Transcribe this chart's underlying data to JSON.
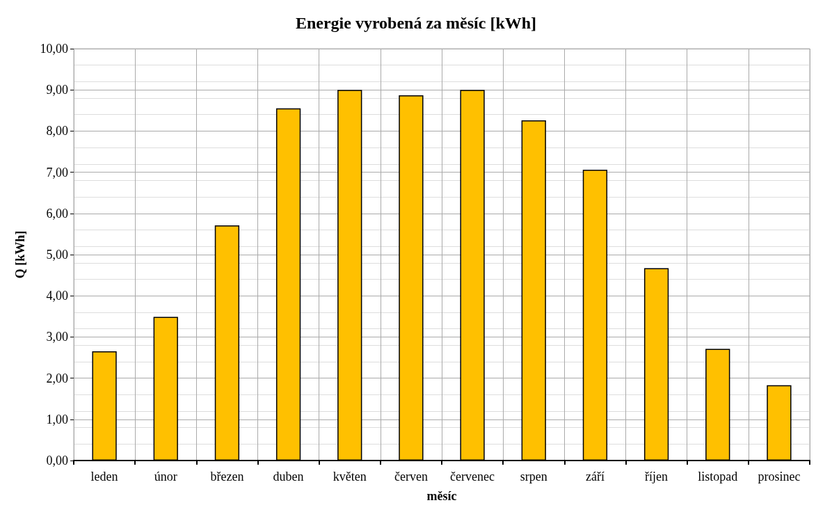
{
  "chart_data": {
    "type": "bar",
    "title": "Energie vyrobená za měsíc [kWh]",
    "xlabel": "měsíc",
    "ylabel": "Q [kWh]",
    "categories": [
      "leden",
      "únor",
      "březen",
      "duben",
      "květen",
      "červen",
      "červenec",
      "srpen",
      "září",
      "říjen",
      "listopad",
      "prosinec"
    ],
    "values": [
      2.65,
      3.49,
      5.71,
      8.55,
      9.0,
      8.87,
      9.0,
      8.26,
      7.06,
      4.67,
      2.71,
      1.83
    ],
    "color": "#ffc000",
    "ylim": [
      0,
      10
    ],
    "yticks": [
      {
        "value": 0,
        "label": "0,00"
      },
      {
        "value": 1,
        "label": "1,00"
      },
      {
        "value": 2,
        "label": "2,00"
      },
      {
        "value": 3,
        "label": "3,00"
      },
      {
        "value": 4,
        "label": "4,00"
      },
      {
        "value": 5,
        "label": "5,00"
      },
      {
        "value": 6,
        "label": "6,00"
      },
      {
        "value": 7,
        "label": "7,00"
      },
      {
        "value": 8,
        "label": "8,00"
      },
      {
        "value": 9,
        "label": "9,00"
      },
      {
        "value": 10,
        "label": "10,00"
      }
    ],
    "grid": true
  }
}
